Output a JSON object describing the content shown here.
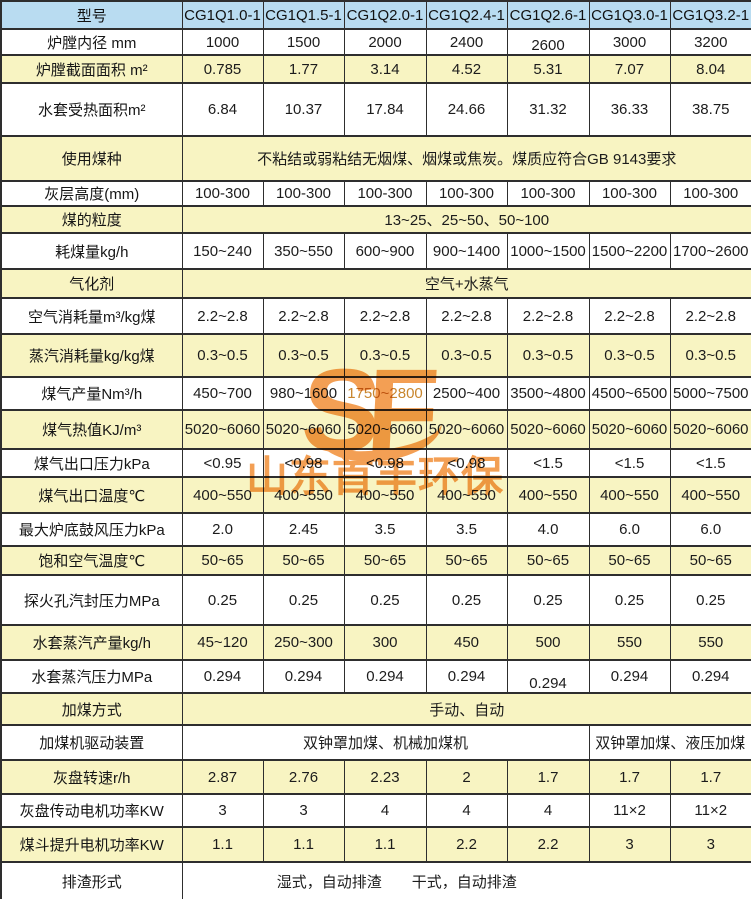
{
  "watermark": {
    "logo": "SF",
    "text": "山东首丰环保",
    "color": "#f2923c"
  },
  "colors": {
    "header_bg": "#b9dcf1",
    "shade_bg": "#f8f4c2",
    "border": "#2e2e2e"
  },
  "table": {
    "header": {
      "label": "型号",
      "columns": [
        "CG1Q1.0-1",
        "CG1Q1.5-1",
        "CG1Q2.0-1",
        "CG1Q2.4-1",
        "CG1Q2.6-1",
        "CG1Q3.0-1",
        "CG1Q3.2-1"
      ]
    },
    "rows": [
      {
        "label": "炉膛内径 mm",
        "shade": false,
        "values": [
          "1000",
          "1500",
          "2000",
          "2400",
          "2600",
          "3000",
          "3200"
        ]
      },
      {
        "label": "炉膛截面面积 m²",
        "shade": true,
        "values": [
          "0.785",
          "1.77",
          "3.14",
          "4.52",
          "5.31",
          "7.07",
          "8.04"
        ]
      },
      {
        "label": "水套受热面积m²",
        "shade": false,
        "values": [
          "6.84",
          "10.37",
          "17.84",
          "24.66",
          "31.32",
          "36.33",
          "38.75"
        ]
      },
      {
        "label": "使用煤种",
        "shade": true,
        "span": "不粘结或弱粘结无烟煤、烟煤或焦炭。煤质应符合GB 9143要求"
      },
      {
        "label": "灰层高度(mm)",
        "shade": false,
        "values": [
          "100-300",
          "100-300",
          "100-300",
          "100-300",
          "100-300",
          "100-300",
          "100-300"
        ]
      },
      {
        "label": "煤的粒度",
        "shade": true,
        "span": "13~25、25~50、50~100"
      },
      {
        "label": "耗煤量kg/h",
        "shade": false,
        "values": [
          "150~240",
          "350~550",
          "600~900",
          "900~1400",
          "1000~1500",
          "1500~2200",
          "1700~2600"
        ]
      },
      {
        "label": "气化剂",
        "shade": true,
        "span": "空气+水蒸气"
      },
      {
        "label": "空气消耗量m³/kg煤",
        "shade": false,
        "values": [
          "2.2~2.8",
          "2.2~2.8",
          "2.2~2.8",
          "2.2~2.8",
          "2.2~2.8",
          "2.2~2.8",
          "2.2~2.8"
        ]
      },
      {
        "label": "蒸汽消耗量kg/kg煤",
        "shade": true,
        "values": [
          "0.3~0.5",
          "0.3~0.5",
          "0.3~0.5",
          "0.3~0.5",
          "0.3~0.5",
          "0.3~0.5",
          "0.3~0.5"
        ]
      },
      {
        "label": "煤气产量Nm³/h",
        "shade": false,
        "values": [
          "450~700",
          "980~1600",
          "1750~2800",
          "2500~400",
          "3500~4800",
          "4500~6500",
          "5000~7500"
        ]
      },
      {
        "label": "煤气热值KJ/m³",
        "shade": true,
        "values": [
          "5020~6060",
          "5020~6060",
          "5020~6060",
          "5020~6060",
          "5020~6060",
          "5020~6060",
          "5020~6060"
        ]
      },
      {
        "label": "煤气出口压力kPa",
        "shade": false,
        "values": [
          "<0.95",
          "<0.98",
          "<0.98",
          "<0.98",
          "<1.5",
          "<1.5",
          "<1.5"
        ]
      },
      {
        "label": "煤气出口温度℃",
        "shade": true,
        "values": [
          "400~550",
          "400~550",
          "400~550",
          "400~550",
          "400~550",
          "400~550",
          "400~550"
        ]
      },
      {
        "label": "最大炉底鼓风压力kPa",
        "shade": false,
        "values": [
          "2.0",
          "2.45",
          "3.5",
          "3.5",
          "4.0",
          "6.0",
          "6.0"
        ]
      },
      {
        "label": "饱和空气温度℃",
        "shade": true,
        "values": [
          "50~65",
          "50~65",
          "50~65",
          "50~65",
          "50~65",
          "50~65",
          "50~65"
        ]
      },
      {
        "label": "探火孔汽封压力MPa",
        "shade": false,
        "values": [
          "0.25",
          "0.25",
          "0.25",
          "0.25",
          "0.25",
          "0.25",
          "0.25"
        ]
      },
      {
        "label": "水套蒸汽产量kg/h",
        "shade": true,
        "values": [
          "45~120",
          "250~300",
          "300",
          "450",
          "500",
          "550",
          "550"
        ]
      },
      {
        "label": "水套蒸汽压力MPa",
        "shade": false,
        "values": [
          "0.294",
          "0.294",
          "0.294",
          "0.294",
          "0.294",
          "0.294",
          "0.294"
        ]
      },
      {
        "label": "加煤方式",
        "shade": true,
        "span": "手动、自动"
      },
      {
        "label": "加煤机驱动装置",
        "shade": false,
        "spans": [
          {
            "text": "双钟罩加煤、机械加煤机",
            "cols": 5
          },
          {
            "text": "双钟罩加煤、液压加煤",
            "cols": 2
          }
        ]
      },
      {
        "label": "灰盘转速r/h",
        "shade": true,
        "values": [
          "2.87",
          "2.76",
          "2.23",
          "2",
          "1.7",
          "1.7",
          "1.7"
        ]
      },
      {
        "label": "灰盘传动电机功率KW",
        "shade": false,
        "values": [
          "3",
          "3",
          "4",
          "4",
          "4",
          "11×2",
          "11×2"
        ]
      },
      {
        "label": "煤斗提升电机功率KW",
        "shade": true,
        "values": [
          "1.1",
          "1.1",
          "1.1",
          "2.2",
          "2.2",
          "3",
          "3"
        ]
      },
      {
        "label": "排渣形式",
        "shade": false,
        "span": "湿式，自动排渣　　干式，自动排渣"
      }
    ]
  }
}
